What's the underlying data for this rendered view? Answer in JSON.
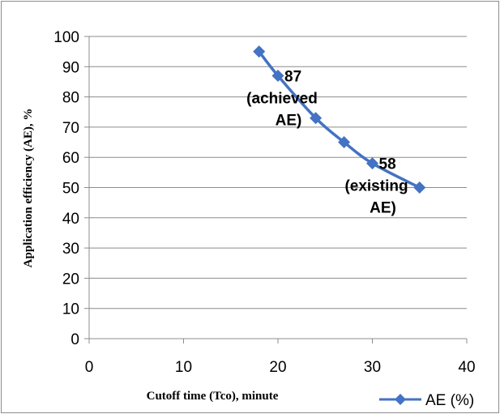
{
  "chart_data": {
    "type": "line",
    "xlabel": "Cutoff time (Tco), minute",
    "ylabel": "Application efficiency (AE), %",
    "xlim": [
      0,
      40
    ],
    "ylim": [
      0,
      100
    ],
    "xticks": [
      0,
      10,
      20,
      30,
      40
    ],
    "yticks": [
      0,
      10,
      20,
      30,
      40,
      50,
      60,
      70,
      80,
      90,
      100
    ],
    "grid": "horizontal",
    "legend": "bottom-right",
    "series": [
      {
        "name": "AE (%)",
        "color": "#4472C4",
        "marker": "diamond",
        "points": [
          {
            "x": 18,
            "y": 95
          },
          {
            "x": 20,
            "y": 87
          },
          {
            "x": 24,
            "y": 73
          },
          {
            "x": 27,
            "y": 65
          },
          {
            "x": 30,
            "y": 58
          },
          {
            "x": 35,
            "y": 50
          }
        ]
      }
    ],
    "annotations": [
      {
        "x": 20,
        "y": 87,
        "lines": [
          "87",
          "(achieved",
          "AE)"
        ]
      },
      {
        "x": 30,
        "y": 58,
        "lines": [
          "58",
          "(existing",
          "AE)"
        ]
      }
    ]
  }
}
